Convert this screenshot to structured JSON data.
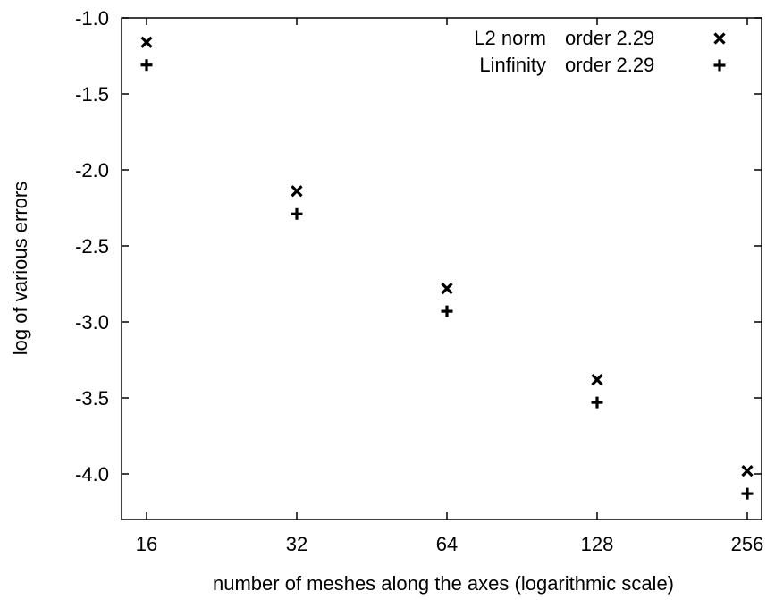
{
  "chart_data": {
    "type": "scatter",
    "xlabel": "number of meshes along the axes (logarithmic scale)",
    "ylabel": "log of various errors",
    "x_scale": "log2",
    "x_ticks": [
      16,
      32,
      64,
      128,
      256
    ],
    "x_tick_labels": [
      "16",
      "32",
      "64",
      "128",
      "256"
    ],
    "y_ticks": [
      -1.0,
      -1.5,
      -2.0,
      -2.5,
      -3.0,
      -3.5,
      -4.0
    ],
    "y_tick_labels": [
      "-1.0",
      "-1.5",
      "-2.0",
      "-2.5",
      "-3.0",
      "-3.5",
      "-4.0"
    ],
    "xlim": [
      16,
      256
    ],
    "ylim": [
      -4.3,
      -1.0
    ],
    "grid": false,
    "legend_position": "top-right",
    "series": [
      {
        "name": "L2 norm",
        "legend_label": "L2 norm",
        "order_label": "order 2.29",
        "marker": "x",
        "color": "#000000",
        "x": [
          16,
          32,
          64,
          128,
          256
        ],
        "y": [
          -1.16,
          -2.14,
          -2.78,
          -3.38,
          -3.98
        ]
      },
      {
        "name": "Linfinity",
        "legend_label": "Linfinity",
        "order_label": "order 2.29",
        "marker": "+",
        "color": "#000000",
        "x": [
          16,
          32,
          64,
          128,
          256
        ],
        "y": [
          -1.31,
          -2.29,
          -2.93,
          -3.53,
          -4.13
        ]
      }
    ]
  }
}
